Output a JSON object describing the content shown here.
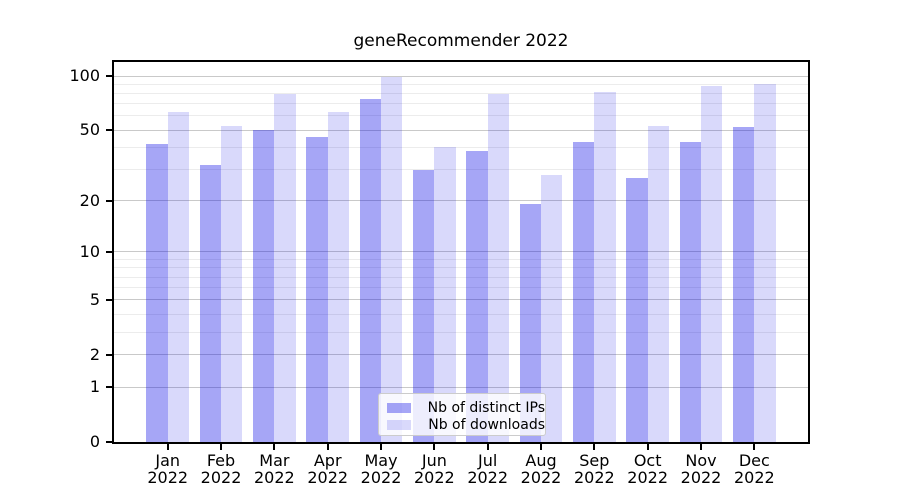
{
  "chart_data": {
    "type": "bar",
    "title": "geneRecommender 2022",
    "categories": [
      "Jan",
      "Feb",
      "Mar",
      "Apr",
      "May",
      "Jun",
      "Jul",
      "Aug",
      "Sep",
      "Oct",
      "Nov",
      "Dec"
    ],
    "category_year": "2022",
    "series": [
      {
        "name": "Nb of distinct IPs",
        "color": "rgba(0,0,230,0.35)",
        "values": [
          42,
          32,
          50,
          46,
          75,
          30,
          38,
          19,
          43,
          27,
          43,
          52
        ]
      },
      {
        "name": "Nb of downloads",
        "color": "rgba(0,0,230,0.15)",
        "values": [
          63,
          53,
          80,
          63,
          99,
          40,
          80,
          28,
          82,
          53,
          88,
          90
        ]
      }
    ],
    "yscale": "log1p",
    "y_axis": {
      "major_ticks": [
        0,
        1,
        2,
        5,
        10,
        20,
        50,
        100
      ],
      "minor_gridlines": [
        3,
        4,
        6,
        7,
        8,
        9,
        30,
        40,
        60,
        70,
        80,
        90
      ],
      "ylim": [
        0,
        120
      ]
    },
    "grid": "horizontal",
    "legend_position": "lower center",
    "colors": {
      "major_grid": "#c9c9c9",
      "minor_grid": "#ececec",
      "axis": "#000000",
      "text": "#000000"
    }
  }
}
